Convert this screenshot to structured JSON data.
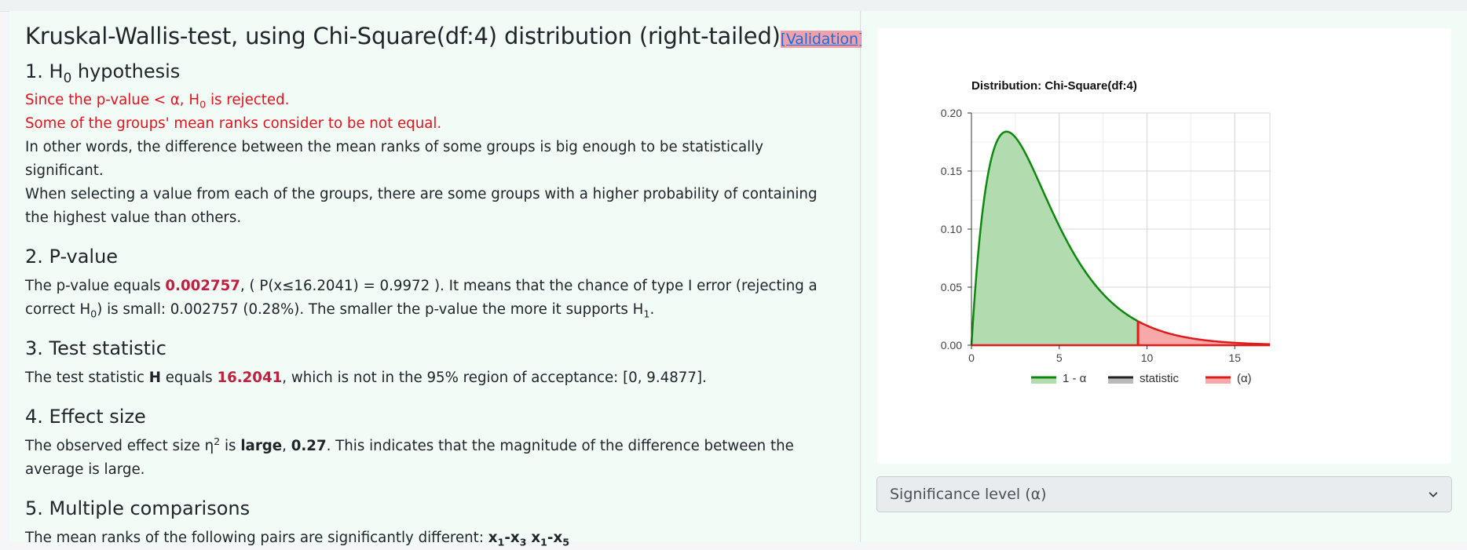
{
  "title": "Kruskal-Wallis-test, using Chi-Square(df:4) distribution (right-tailed)",
  "validation_label": "[Validation]",
  "sections": {
    "h0": {
      "heading_num": "1. H",
      "heading_sub": "0",
      "heading_rest": " hypothesis",
      "line1_a": "Since the p-value < α, H",
      "line1_sub": "0",
      "line1_b": " is rejected.",
      "line2": "Some of the groups' mean ranks consider to be not equal.",
      "line3": "In other words, the difference between the mean ranks of some groups is big enough to be statistically significant.",
      "line4": "When selecting a value from each of the groups, there are some groups with a higher probability of containing the highest value than others."
    },
    "pvalue": {
      "heading": "2. P-value",
      "t1": "The p-value equals ",
      "value": "0.002757",
      "t2": ", ( P(x≤16.2041) = 0.9972 ). It means that the chance of type I error (rejecting a correct H",
      "sub0": "0",
      "t3": ") is small: 0.002757 (0.28%). The smaller the p-value the more it supports H",
      "sub1": "1",
      "t4": "."
    },
    "statistic": {
      "heading": "3. Test statistic",
      "t1": "The test statistic ",
      "symbol": "H",
      "t2": " equals ",
      "value": "16.2041",
      "t3": ", which is not in the 95% region of acceptance: [0, 9.4877]."
    },
    "effect": {
      "heading": "4. Effect size",
      "t1": "The observed effect size η",
      "sup": "2",
      "t2": " is ",
      "magnitude": "large",
      "t3": ", ",
      "value": "0.27",
      "t4": ". This indicates that the magnitude of the difference between the average is large."
    },
    "multiple": {
      "heading": "5. Multiple comparisons",
      "t1": "The mean ranks of the following pairs are significantly different: ",
      "pairs": [
        {
          "a": "x",
          "a_sub": "1",
          "sep": "-",
          "b": "x",
          "b_sub": "3"
        },
        {
          "a": "x",
          "a_sub": "1",
          "sep": "-",
          "b": "x",
          "b_sub": "5"
        }
      ]
    }
  },
  "select": {
    "label": "Significance level (α)"
  },
  "colors": {
    "accept_line": "#0d8a0d",
    "accept_fill": "#b3dbb0",
    "reject_line": "#e01b1b",
    "reject_fill": "#f7a9a9",
    "statistic": "#888888"
  },
  "chart_data": {
    "type": "area",
    "title": "Distribution: Chi-Square(df:4)",
    "df": 4,
    "critical_value": 9.4877,
    "statistic": 16.2041,
    "xlim": [
      0,
      17
    ],
    "ylim": [
      0,
      0.2
    ],
    "xticks": [
      0,
      5,
      10,
      15
    ],
    "yticks": [
      0.0,
      0.05,
      0.1,
      0.15,
      0.2
    ],
    "ytick_labels": [
      "0.00",
      "0.05",
      "0.10",
      "0.15",
      "0.20"
    ],
    "grid": true,
    "legend_position": "bottom",
    "series": [
      {
        "name": "1 - α",
        "role": "acceptance"
      },
      {
        "name": "statistic",
        "role": "statistic"
      },
      {
        "name": "(α)",
        "role": "rejection"
      }
    ],
    "x": [
      0,
      0.5,
      1,
      1.5,
      2,
      2.5,
      3,
      3.5,
      4,
      4.5,
      5,
      5.5,
      6,
      6.5,
      7,
      7.5,
      8,
      8.5,
      9,
      9.4877,
      10,
      10.5,
      11,
      11.5,
      12,
      12.5,
      13,
      13.5,
      14,
      14.5,
      15,
      15.5,
      16,
      16.5,
      17
    ],
    "y": [
      0,
      0.0974,
      0.1516,
      0.1771,
      0.1839,
      0.1791,
      0.1673,
      0.1521,
      0.1353,
      0.1186,
      0.1026,
      0.0879,
      0.0747,
      0.063,
      0.0528,
      0.044,
      0.0366,
      0.0303,
      0.025,
      0.0207,
      0.0168,
      0.0137,
      0.0112,
      0.0091,
      0.0074,
      0.006,
      0.0049,
      0.004,
      0.0032,
      0.0026,
      0.0021,
      0.0017,
      0.0013,
      0.0011,
      0.0009
    ]
  }
}
